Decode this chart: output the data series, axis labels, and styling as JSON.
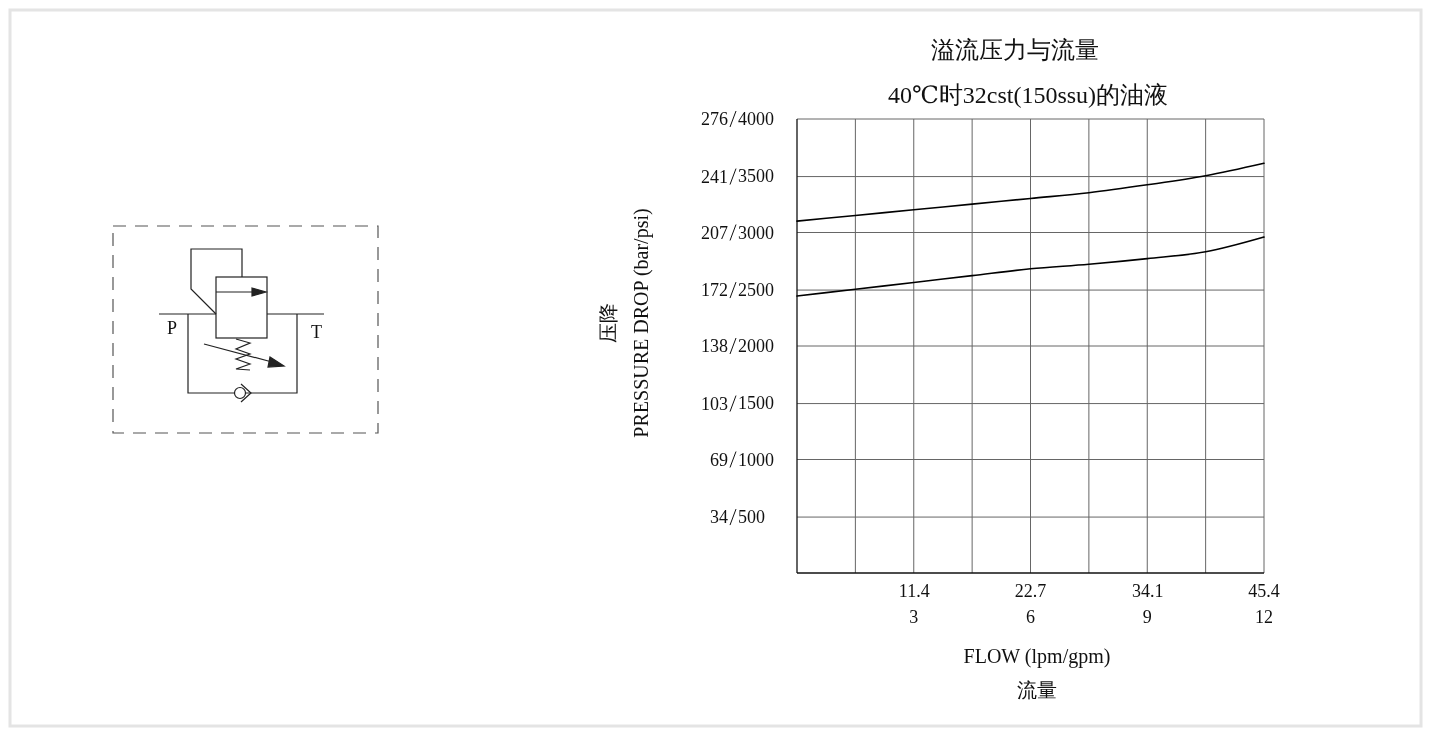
{
  "chart_data": {
    "type": "line",
    "title": "溢流压力与流量",
    "subtitle": "40℃时32cst(150ssu)的油液",
    "xlabel": "FLOW (lpm/gpm)\n流量",
    "ylabel": "压降\nPRESSURE DROP (bar/psi)",
    "x": [
      0,
      1.5,
      3,
      4.5,
      6,
      7.5,
      9,
      10.5,
      12
    ],
    "series": [
      {
        "color": "#000000",
        "axis": "y2",
        "values": [
          3100,
          3150,
          3200,
          3250,
          3300,
          3350,
          3420,
          3500,
          3610
        ]
      },
      {
        "color": "#000000",
        "axis": "y2",
        "values": [
          2440,
          2500,
          2560,
          2620,
          2680,
          2720,
          2770,
          2830,
          2960
        ]
      }
    ],
    "xlim": [
      0,
      12
    ],
    "ylim": [
      0,
      276
    ],
    "xticks": [
      {
        "value": 1.5,
        "label": null
      },
      3,
      {
        "value": 4.5,
        "label": null
      },
      6,
      {
        "value": 7.5,
        "label": null
      },
      9,
      {
        "value": 10.5,
        "label": null
      },
      12
    ],
    "x2lim": [
      0,
      45.4
    ],
    "x2ticks": [
      11.4,
      22.7,
      34.1,
      45.4
    ],
    "yticks": [
      34,
      69,
      103,
      138,
      172,
      207,
      241,
      276
    ],
    "y2lim": [
      0,
      4000
    ],
    "y2ticks": [
      500,
      1000,
      1500,
      2000,
      2500,
      3000,
      3500,
      4000
    ],
    "grid": true,
    "line_style": "solid",
    "annotations": [
      "P",
      "T"
    ]
  }
}
